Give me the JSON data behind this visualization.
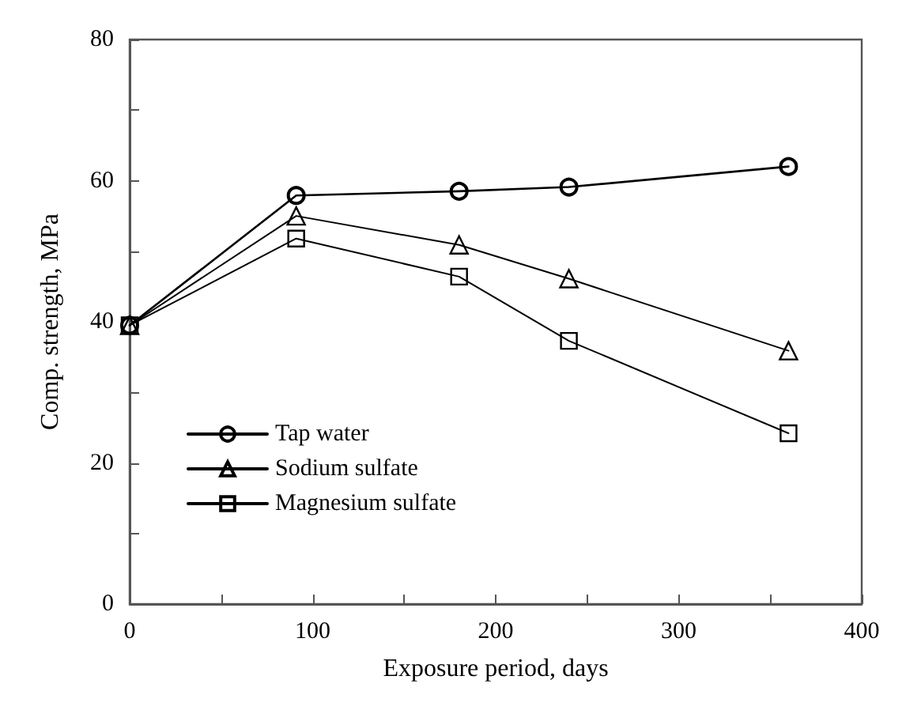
{
  "chart_data": {
    "type": "line",
    "xlabel": "Exposure period, days",
    "ylabel": "Comp. strength, MPa",
    "x": [
      0,
      91,
      180,
      240,
      360
    ],
    "series": [
      {
        "name": "Tap water",
        "color": "#000000",
        "marker": "circle",
        "values": [
          39.5,
          57.9,
          58.5,
          59.1,
          62
        ]
      },
      {
        "name": "Sodium sulfate",
        "color": "#000000",
        "marker": "triangle",
        "values": [
          39.5,
          55,
          50.9,
          46.1,
          35.9
        ]
      },
      {
        "name": "Magnesium sulfate",
        "color": "#000000",
        "marker": "square",
        "values": [
          39.5,
          51.8,
          46.4,
          37.3,
          24.2
        ]
      }
    ],
    "xlim": [
      0,
      400
    ],
    "xticks": [
      0,
      {
        "value": 50,
        "label": null
      },
      100,
      {
        "value": 150,
        "label": null
      },
      200,
      {
        "value": 250,
        "label": null
      },
      300,
      {
        "value": 350,
        "label": null
      },
      400
    ],
    "ylim": [
      0,
      80
    ],
    "yticks": [
      0,
      {
        "value": 10,
        "label": null
      },
      20,
      {
        "value": 30,
        "label": null
      },
      40,
      {
        "value": 50,
        "label": null
      },
      60,
      {
        "value": 70,
        "label": null
      },
      80
    ],
    "grid": false,
    "legend": "bottom left",
    "line_style": "solid"
  }
}
